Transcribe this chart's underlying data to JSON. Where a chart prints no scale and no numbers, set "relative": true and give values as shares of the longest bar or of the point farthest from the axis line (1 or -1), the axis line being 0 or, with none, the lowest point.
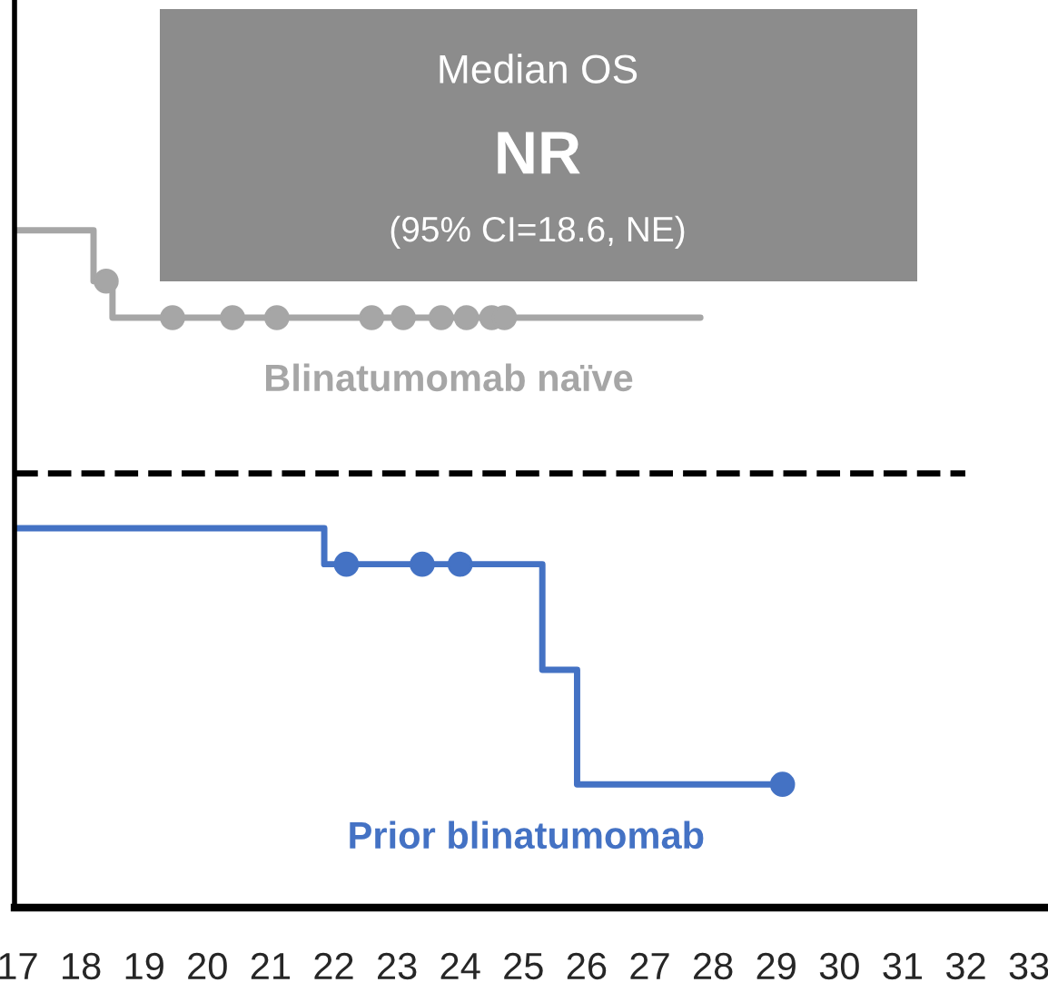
{
  "chart_data": {
    "type": "step",
    "relative": true,
    "xlim": [
      16.95,
      33.3
    ],
    "xticks": [
      17,
      18,
      19,
      20,
      21,
      22,
      23,
      24,
      25,
      26,
      27,
      28,
      29,
      30,
      31,
      32,
      33
    ],
    "series": [
      {
        "name": "Blinatumomab naïve",
        "color": "#a6a6a6",
        "x": [
          16.95,
          18.2,
          18.5,
          27.8
        ],
        "values": [
          1,
          0.925,
          0.871,
          0.871
        ]
      },
      {
        "type": "scatter",
        "color": "#a6a6a6",
        "marker": "circle",
        "x": [
          18.4,
          19.45,
          20.4,
          21.1,
          22.6,
          23.1,
          23.7,
          24.1,
          24.5,
          24.7
        ],
        "values": [
          0.925,
          0.871,
          0.871,
          0.871,
          0.871,
          0.871,
          0.871,
          0.871,
          0.871,
          0.871
        ]
      },
      {
        "name": "Prior blinatumomab",
        "color": "#4472c4",
        "x": [
          16.95,
          21.85,
          25.3,
          25.85,
          29.1
        ],
        "values": [
          0.56,
          0.507,
          0.351,
          0.182,
          0.182
        ]
      },
      {
        "type": "scatter",
        "color": "#4472c4",
        "marker": "circle",
        "x": [
          22.2,
          23.4,
          24.0,
          29.1
        ],
        "values": [
          0.507,
          0.507,
          0.507,
          0.182
        ]
      }
    ],
    "ref_lines": [
      {
        "axis": "y",
        "value": 0.641,
        "color": "#000000",
        "line_style": "dashed"
      }
    ],
    "annotations": [
      "Median OS",
      "NR",
      "(95% CI=18.6, NE)"
    ],
    "grid": false,
    "legend": false
  }
}
